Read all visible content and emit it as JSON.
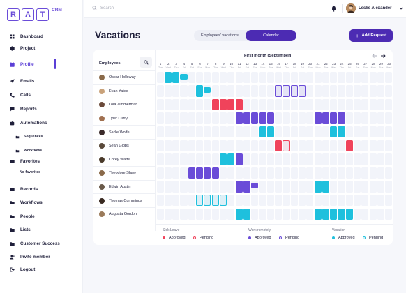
{
  "brand": {
    "letters": [
      "R",
      "A",
      "T"
    ],
    "suffix": "CRM"
  },
  "sidebar": {
    "items": [
      {
        "label": "Dashboard",
        "icon": "grid-icon",
        "top": 0
      },
      {
        "label": "Project",
        "icon": "cube-icon"
      },
      {
        "label": "Profile",
        "icon": "calendar-icon",
        "active": true
      },
      {
        "label": "Emails",
        "icon": "send-icon"
      },
      {
        "label": "Calls",
        "icon": "phone-icon"
      },
      {
        "label": "Reports",
        "icon": "chat-icon"
      },
      {
        "label": "Automations",
        "icon": "robot-icon"
      },
      {
        "label": "Favorites",
        "icon": "folder-icon"
      },
      {
        "label": "Records",
        "icon": "folder-icon"
      },
      {
        "label": "Workflows",
        "icon": "folder-icon"
      },
      {
        "label": "People",
        "icon": "folder-icon"
      },
      {
        "label": "Lists",
        "icon": "folder-icon"
      },
      {
        "label": "Customer Success",
        "icon": "folder-icon"
      },
      {
        "label": "Invite member",
        "icon": "user-plus-icon"
      },
      {
        "label": "Logout",
        "icon": "logout-icon"
      }
    ],
    "automation_subs": [
      "Sequences",
      "Workflows"
    ],
    "favorites_sub": "No favorites"
  },
  "topbar": {
    "search_placeholder": "Search",
    "user_name": "Leslie Alexander"
  },
  "page": {
    "title": "Vacations",
    "toggle": {
      "left": "Employees' vacations",
      "right": "Calendar"
    },
    "add_button": "Add Request"
  },
  "calendar": {
    "employees_header": "Employees",
    "month_label": "First month (September)",
    "days": [
      {
        "n": "1",
        "w": "Tue"
      },
      {
        "n": "2",
        "w": "Wed"
      },
      {
        "n": "3",
        "w": "Thu"
      },
      {
        "n": "4",
        "w": "Fri"
      },
      {
        "n": "5",
        "w": "Sat"
      },
      {
        "n": "6",
        "w": "Sun"
      },
      {
        "n": "7",
        "w": "Mon"
      },
      {
        "n": "8",
        "w": "Tue"
      },
      {
        "n": "9",
        "w": "Wed"
      },
      {
        "n": "10",
        "w": "Thu"
      },
      {
        "n": "11",
        "w": "Fri"
      },
      {
        "n": "12",
        "w": "Sat"
      },
      {
        "n": "13",
        "w": "Sun"
      },
      {
        "n": "14",
        "w": "Mon"
      },
      {
        "n": "15",
        "w": "Tue"
      },
      {
        "n": "16",
        "w": "Wed"
      },
      {
        "n": "17",
        "w": "Thu"
      },
      {
        "n": "18",
        "w": "Fri"
      },
      {
        "n": "19",
        "w": "Sat"
      },
      {
        "n": "20",
        "w": "Sun"
      },
      {
        "n": "21",
        "w": "Mon"
      },
      {
        "n": "22",
        "w": "Tue"
      },
      {
        "n": "23",
        "w": "Wed"
      },
      {
        "n": "24",
        "w": "Thu"
      },
      {
        "n": "25",
        "w": "Fri"
      },
      {
        "n": "26",
        "w": "Sat"
      },
      {
        "n": "27",
        "w": "Sun"
      },
      {
        "n": "28",
        "w": "Mon"
      },
      {
        "n": "29",
        "w": "Tue"
      },
      {
        "n": "30",
        "w": "Wed"
      }
    ],
    "employees": [
      {
        "name": "Oscar Holloway",
        "avatar": "#8a6a4a",
        "blocks": [
          {
            "start": 2,
            "end": 3,
            "type": "vacation-approved"
          },
          {
            "start": 4,
            "end": 4,
            "type": "vacation-approved",
            "small": true
          }
        ]
      },
      {
        "name": "Evan Yates",
        "avatar": "#c9a27a",
        "blocks": [
          {
            "start": 6,
            "end": 6,
            "type": "vacation-approved"
          },
          {
            "start": 7,
            "end": 7,
            "type": "vacation-approved",
            "small": true
          },
          {
            "start": 16,
            "end": 19,
            "type": "remote-pending"
          }
        ]
      },
      {
        "name": "Lola Zimmerman",
        "avatar": "#6b4a3a",
        "blocks": [
          {
            "start": 8,
            "end": 11,
            "type": "sick-approved"
          }
        ]
      },
      {
        "name": "Tyler Curry",
        "avatar": "#a07050",
        "blocks": [
          {
            "start": 11,
            "end": 15,
            "type": "remote-approved"
          },
          {
            "start": 21,
            "end": 24,
            "type": "remote-approved"
          }
        ]
      },
      {
        "name": "Sadie Wolfe",
        "avatar": "#3a2a2a",
        "blocks": [
          {
            "start": 14,
            "end": 15,
            "type": "vacation-approved"
          },
          {
            "start": 23,
            "end": 24,
            "type": "vacation-approved"
          }
        ]
      },
      {
        "name": "Sean Gibbs",
        "avatar": "#5a4a3a",
        "blocks": [
          {
            "start": 16,
            "end": 16,
            "type": "sick-approved"
          },
          {
            "start": 17,
            "end": 17,
            "type": "sick-pending"
          },
          {
            "start": 25,
            "end": 25,
            "type": "sick-approved"
          }
        ]
      },
      {
        "name": "Corey Watts",
        "avatar": "#4a3a2a",
        "blocks": [
          {
            "start": 9,
            "end": 10,
            "type": "vacation-approved"
          },
          {
            "start": 11,
            "end": 11,
            "type": "remote-approved"
          }
        ]
      },
      {
        "name": "Theodore Shaw",
        "avatar": "#8a6a4a",
        "blocks": [
          {
            "start": 5,
            "end": 8,
            "type": "remote-approved"
          }
        ]
      },
      {
        "name": "Edwin Austin",
        "avatar": "#6a5a4a",
        "blocks": [
          {
            "start": 11,
            "end": 12,
            "type": "remote-approved"
          },
          {
            "start": 13,
            "end": 13,
            "type": "remote-approved",
            "small": true
          },
          {
            "start": 21,
            "end": 22,
            "type": "vacation-approved"
          }
        ]
      },
      {
        "name": "Thomas Cummings",
        "avatar": "#3a2a22",
        "blocks": [
          {
            "start": 6,
            "end": 9,
            "type": "vacation-pending"
          }
        ]
      },
      {
        "name": "Augusta Gordon",
        "avatar": "#9a7a5a",
        "blocks": [
          {
            "start": 11,
            "end": 12,
            "type": "vacation-approved"
          },
          {
            "start": 21,
            "end": 25,
            "type": "vacation-approved"
          }
        ]
      }
    ]
  },
  "legend": [
    {
      "title": "Sick Leave",
      "approved": "Approved",
      "pending": "Pending",
      "color": "#f0435b"
    },
    {
      "title": "Work remotely",
      "approved": "Approved",
      "pending": "Pending",
      "color": "#6a4cd8"
    },
    {
      "title": "Vacation",
      "approved": "Approved",
      "pending": "Pending",
      "color": "#1ec0dd"
    }
  ],
  "colors": {
    "accent": "#4c2bb3",
    "sick": "#f0435b",
    "remote": "#6a4cd8",
    "vacation": "#1ec0dd"
  }
}
